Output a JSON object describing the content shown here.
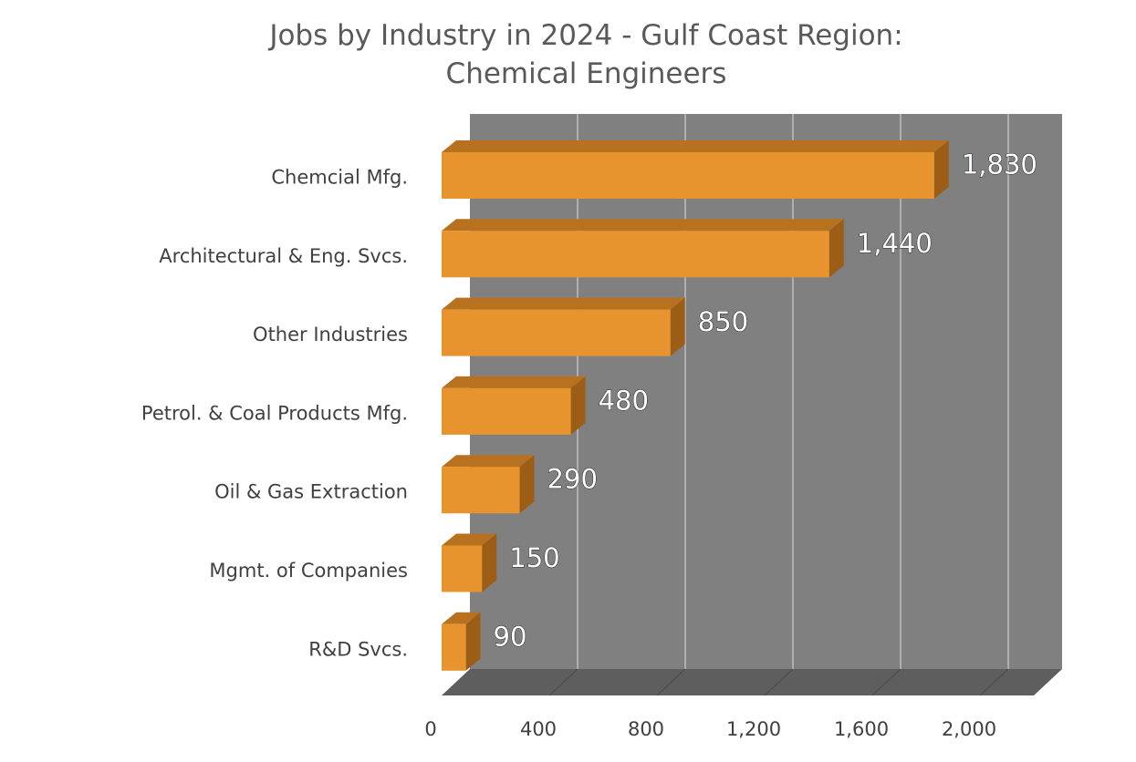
{
  "chart_data": {
    "type": "bar",
    "orientation": "horizontal",
    "three_d": true,
    "title_lines": [
      "Jobs by Industry in 2024 - Gulf Coast Region:",
      "Chemical Engineers"
    ],
    "categories": [
      "Chemcial Mfg.",
      "Architectural & Eng. Svcs.",
      "Other Industries",
      "Petrol. & Coal Products Mfg.",
      "Oil & Gas Extraction",
      "Mgmt. of Companies",
      "R&D Svcs."
    ],
    "values": [
      1830,
      1440,
      850,
      480,
      290,
      150,
      90
    ],
    "value_labels": [
      "1,830",
      "1,440",
      "850",
      "480",
      "290",
      "150",
      "90"
    ],
    "xlim": [
      0,
      2200
    ],
    "xticks": [
      0,
      400,
      800,
      1200,
      1600,
      2000
    ],
    "xtick_labels": [
      "0",
      "400",
      "800",
      "1,200",
      "1,600",
      "2,000"
    ],
    "xlabel": "",
    "ylabel": "",
    "grid": true,
    "legend": "none",
    "colors": {
      "bar_front": "#E8942E",
      "bar_top": "#B8721F",
      "bar_side": "#9C5E17",
      "back_wall": "#808080",
      "floor": "#5E5E5E",
      "gridline": "#C8C8C8",
      "title": "#595959",
      "label": "#404040"
    }
  }
}
